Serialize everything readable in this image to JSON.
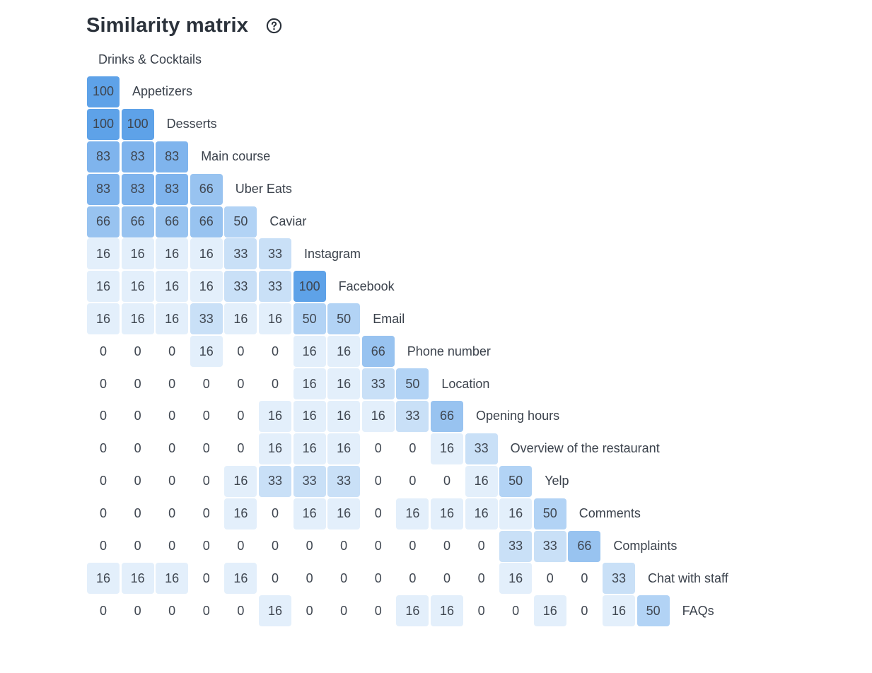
{
  "page": {
    "title": "Similarity matrix",
    "help_icon": "question-circle-icon"
  },
  "colors": {
    "scale": [
      "#ffffff",
      "#e3effb",
      "#c9e0f7",
      "#b2d3f5",
      "#98c3f0",
      "#7fb4ed",
      "#5ea2e8"
    ],
    "text": "#3f4650"
  },
  "chart_data": {
    "type": "heatmap",
    "title": "Similarity matrix",
    "layout": "lower-triangular",
    "labels": [
      "Drinks & Cocktails",
      "Appetizers",
      "Desserts",
      "Main course",
      "Uber Eats",
      "Caviar",
      "Instagram",
      "Facebook",
      "Email",
      "Phone number",
      "Location",
      "Opening hours",
      "Overview of the restaurant",
      "Yelp",
      "Comments",
      "Complaints",
      "Chat with staff",
      "FAQs"
    ],
    "rows": [
      [],
      [
        100
      ],
      [
        100,
        100
      ],
      [
        83,
        83,
        83
      ],
      [
        83,
        83,
        83,
        66
      ],
      [
        66,
        66,
        66,
        66,
        50
      ],
      [
        16,
        16,
        16,
        16,
        33,
        33
      ],
      [
        16,
        16,
        16,
        16,
        33,
        33,
        100
      ],
      [
        16,
        16,
        16,
        33,
        16,
        16,
        50,
        50
      ],
      [
        0,
        0,
        0,
        16,
        0,
        0,
        16,
        16,
        66
      ],
      [
        0,
        0,
        0,
        0,
        0,
        0,
        16,
        16,
        33,
        50
      ],
      [
        0,
        0,
        0,
        0,
        0,
        16,
        16,
        16,
        16,
        33,
        66
      ],
      [
        0,
        0,
        0,
        0,
        0,
        16,
        16,
        16,
        0,
        0,
        16,
        33
      ],
      [
        0,
        0,
        0,
        0,
        16,
        33,
        33,
        33,
        0,
        0,
        0,
        16,
        50
      ],
      [
        0,
        0,
        0,
        0,
        16,
        0,
        16,
        16,
        0,
        16,
        16,
        16,
        16,
        50
      ],
      [
        0,
        0,
        0,
        0,
        0,
        0,
        0,
        0,
        0,
        0,
        0,
        0,
        33,
        33,
        66
      ],
      [
        16,
        16,
        16,
        0,
        16,
        0,
        0,
        0,
        0,
        0,
        0,
        0,
        16,
        0,
        0,
        33
      ],
      [
        0,
        0,
        0,
        0,
        0,
        16,
        0,
        0,
        0,
        16,
        16,
        0,
        0,
        16,
        0,
        16,
        50
      ]
    ],
    "value_range": [
      0,
      100
    ]
  }
}
